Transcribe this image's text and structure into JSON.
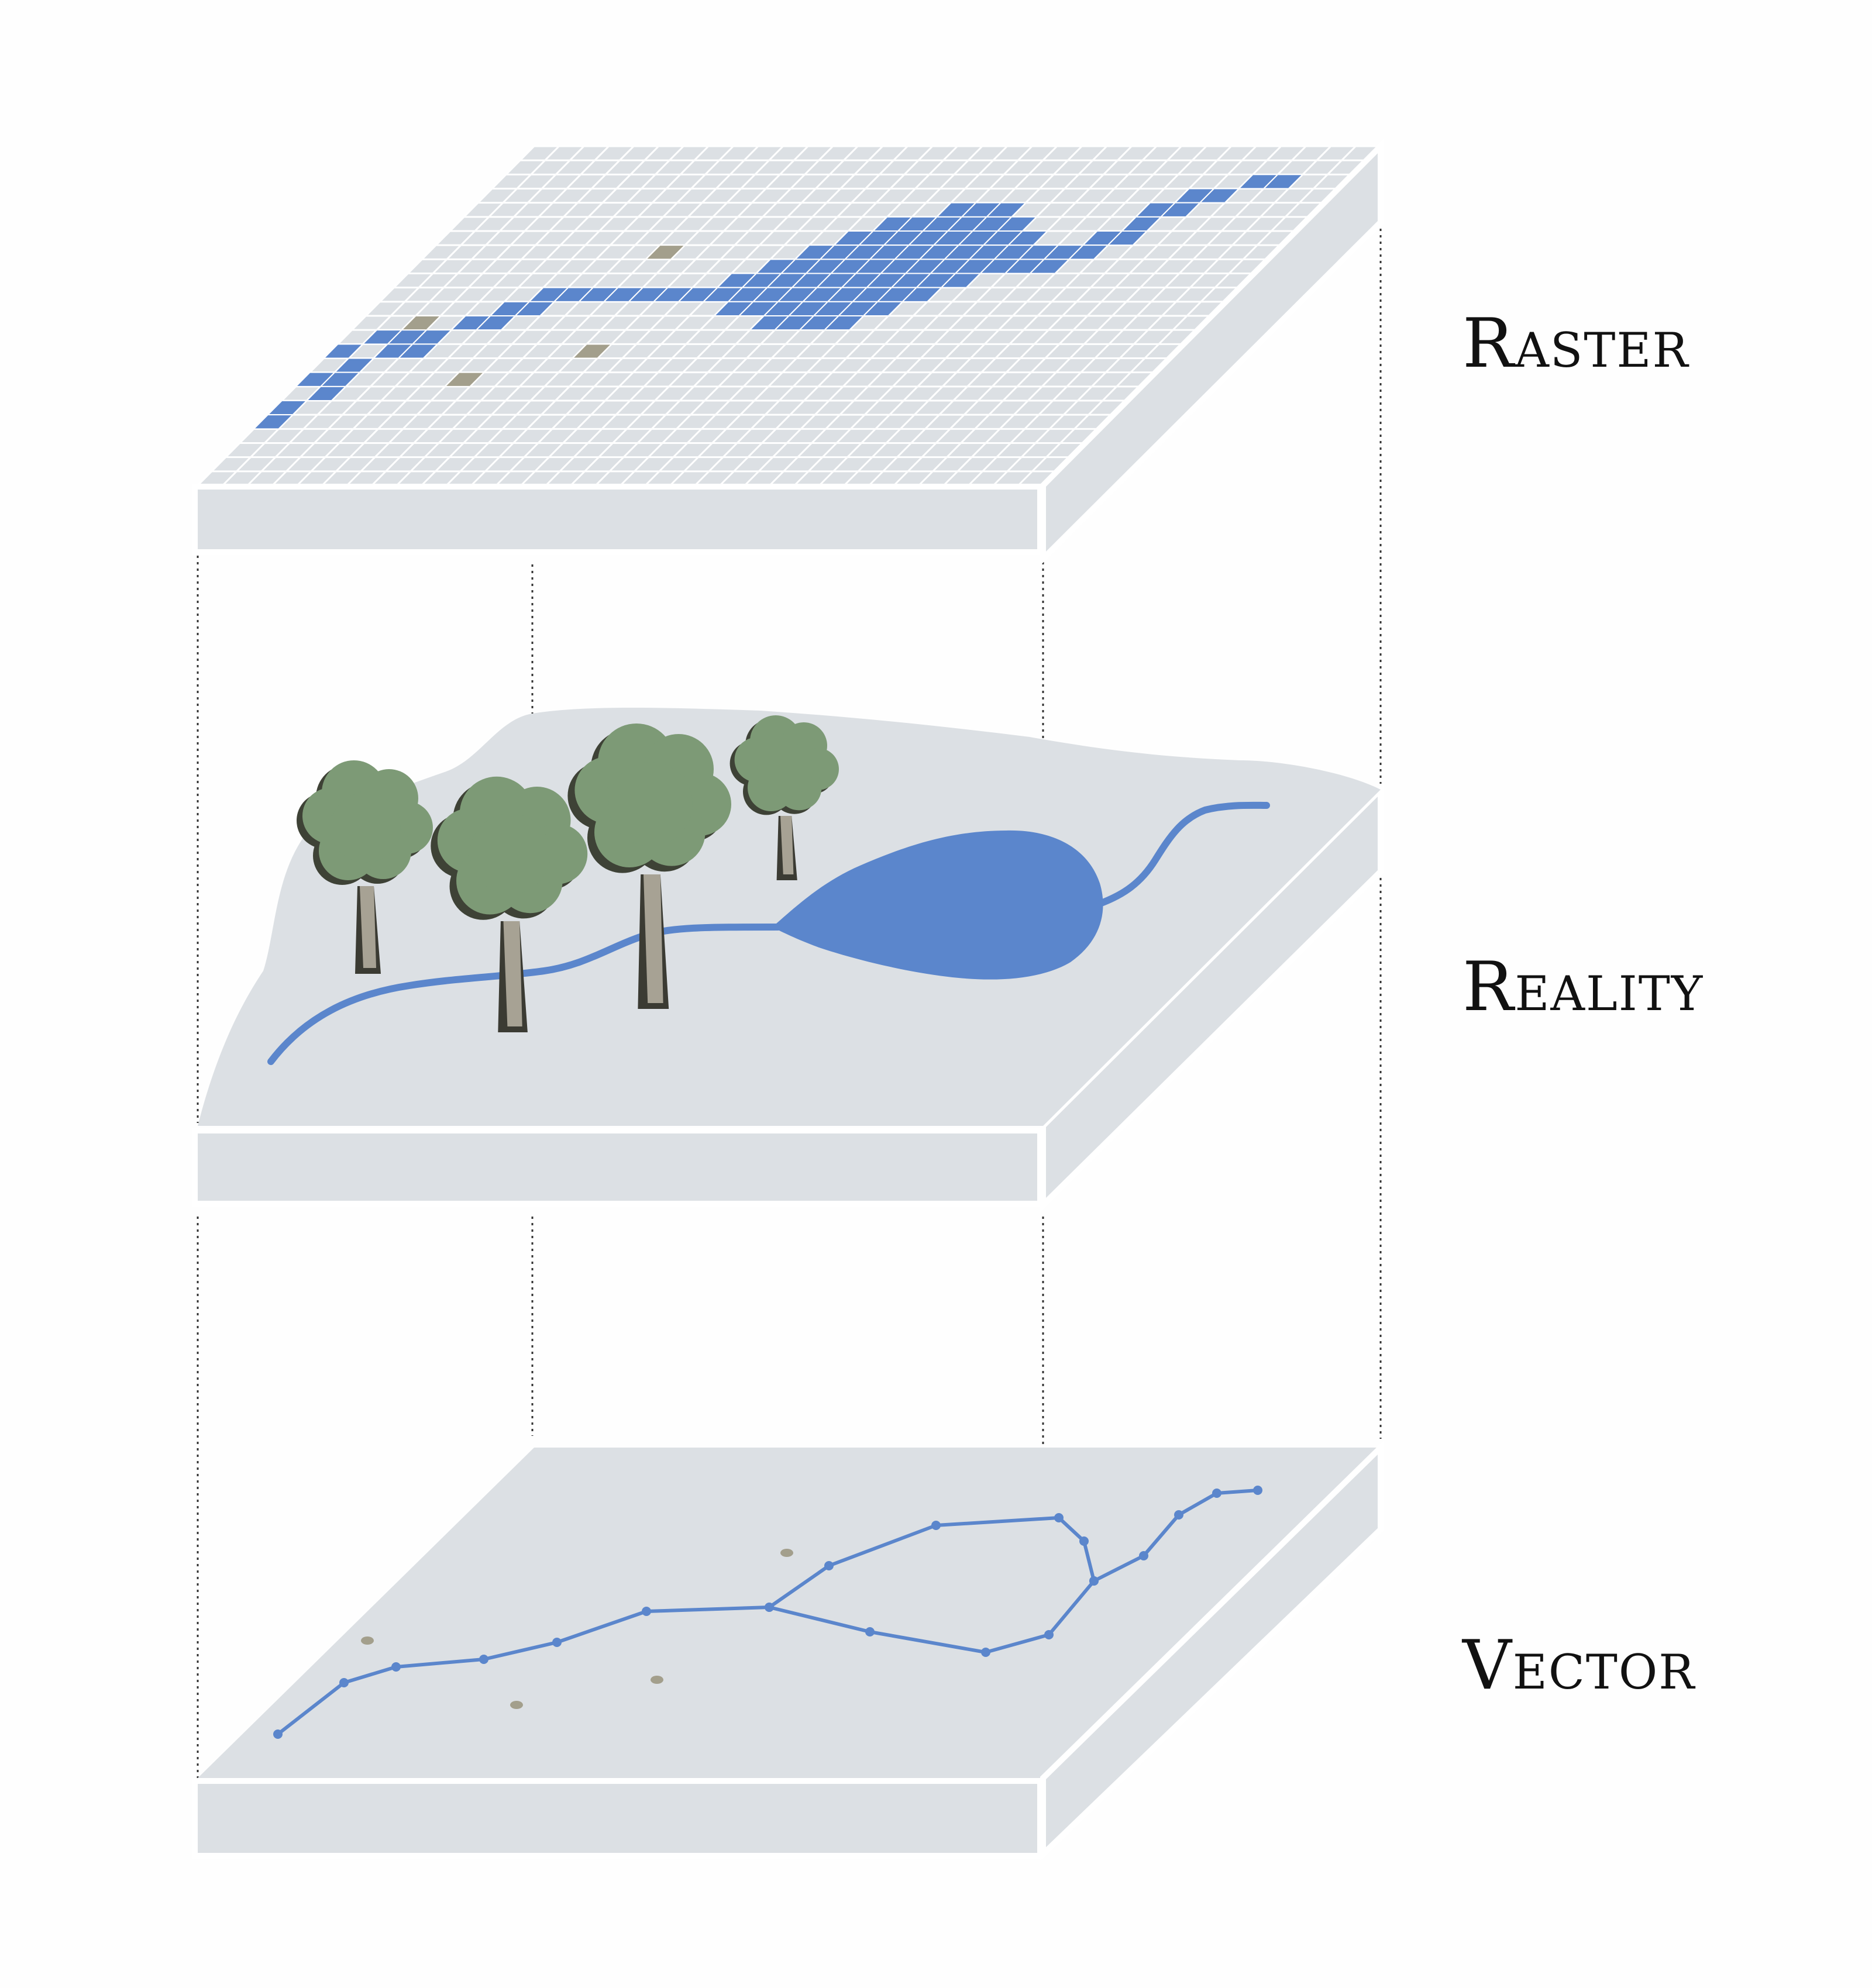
{
  "layers": [
    {
      "id": "raster",
      "label": "Raster"
    },
    {
      "id": "reality",
      "label": "Reality"
    },
    {
      "id": "vector",
      "label": "Vector"
    }
  ],
  "colors": {
    "slab_face": "#dce0e4",
    "slab_edge": "#ffffff",
    "water": "#5b86cc",
    "vector_line": "#5b86cc",
    "point_feature": "#a39f8c",
    "grid_line": "#ffffff",
    "tree_foliage": "#7d9a76",
    "tree_foliage_shadow": "#3e4236",
    "tree_trunk": "#a7a294",
    "tree_trunk_shadow": "#3b3b33",
    "guide_line": "#333333"
  }
}
